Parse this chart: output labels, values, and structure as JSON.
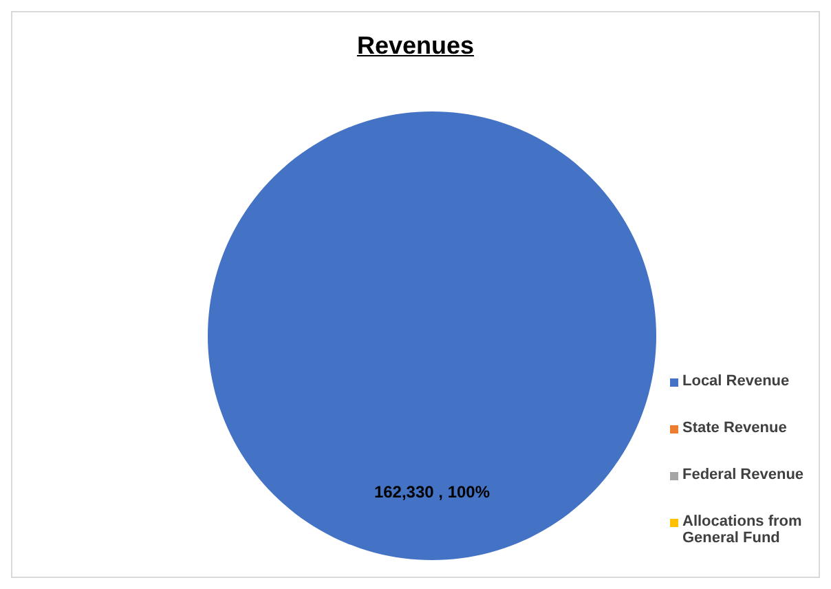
{
  "chart_data": {
    "type": "pie",
    "title": "Revenues",
    "categories": [
      "Local Revenue",
      "State Revenue",
      "Federal Revenue",
      "Allocations from General Fund"
    ],
    "values": [
      162330,
      0,
      0,
      0
    ],
    "colors": [
      "#4472c4",
      "#ed7d31",
      "#a5a5a5",
      "#ffc000"
    ],
    "value_labels": [
      "162,330 , 100%",
      null,
      null,
      null
    ],
    "legend": "right"
  }
}
